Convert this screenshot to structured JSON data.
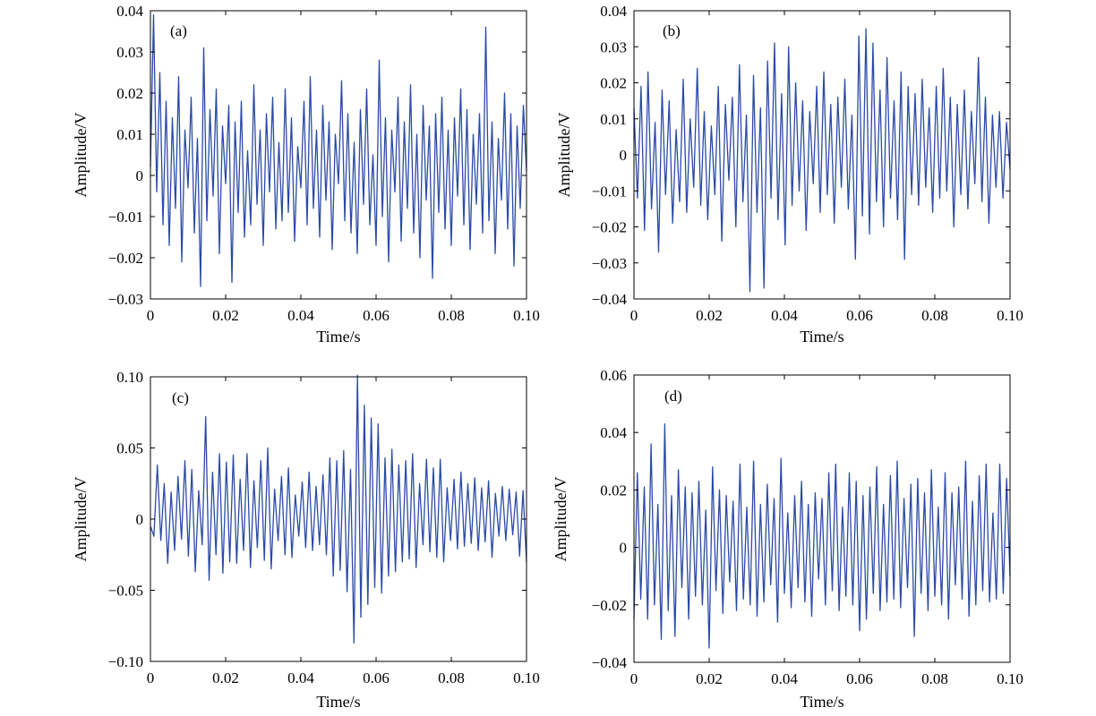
{
  "figure": {
    "background": "#ffffff",
    "line_color": "#2b4aa6"
  },
  "chart_data": [
    {
      "type": "line",
      "panel_label": "(a)",
      "xlabel": "Time/s",
      "ylabel": "Amplitude/V",
      "xlim": [
        0,
        0.1
      ],
      "ylim": [
        -0.03,
        0.04
      ],
      "xticks": [
        0,
        0.02,
        0.04,
        0.06,
        0.08,
        0.1
      ],
      "xtick_labels": [
        "0",
        "0.02",
        "0.04",
        "0.06",
        "0.08",
        "0.10"
      ],
      "yticks": [
        -0.03,
        -0.02,
        -0.01,
        0,
        0.01,
        0.02,
        0.03,
        0.04
      ],
      "ytick_labels": [
        "−0.03",
        "−0.02",
        "−0.01",
        "0",
        "0.01",
        "0.02",
        "0.03",
        "0.04"
      ],
      "grid": false,
      "series": [
        {
          "x_start": 0,
          "x_end": 0.1,
          "values": [
            0.002,
            0.039,
            -0.004,
            0.025,
            -0.012,
            0.018,
            -0.017,
            0.014,
            -0.008,
            0.024,
            -0.021,
            0.011,
            -0.003,
            0.019,
            -0.014,
            0.009,
            -0.027,
            0.031,
            -0.011,
            0.016,
            -0.005,
            0.021,
            -0.019,
            0.012,
            -0.002,
            0.017,
            -0.026,
            0.013,
            -0.009,
            0.018,
            -0.015,
            0.006,
            -0.012,
            0.022,
            -0.007,
            0.011,
            -0.017,
            0.015,
            -0.004,
            0.019,
            -0.013,
            0.008,
            -0.011,
            0.021,
            -0.009,
            0.014,
            -0.016,
            0.007,
            -0.003,
            0.018,
            -0.012,
            0.024,
            -0.008,
            0.011,
            -0.015,
            0.017,
            -0.006,
            0.013,
            -0.018,
            0.01,
            -0.002,
            0.023,
            -0.011,
            0.015,
            -0.014,
            0.008,
            -0.019,
            0.016,
            -0.007,
            0.021,
            -0.012,
            0.005,
            -0.017,
            0.028,
            -0.01,
            0.014,
            -0.021,
            0.011,
            -0.004,
            0.019,
            -0.016,
            0.013,
            -0.008,
            0.022,
            -0.014,
            0.01,
            -0.02,
            0.017,
            -0.006,
            0.012,
            -0.025,
            0.015,
            -0.009,
            0.019,
            -0.013,
            0.011,
            -0.017,
            0.014,
            -0.005,
            0.021,
            -0.012,
            0.016,
            -0.018,
            0.01,
            -0.007,
            0.015,
            -0.014,
            0.036,
            -0.011,
            0.013,
            -0.019,
            0.009,
            -0.006,
            0.02,
            -0.013,
            0.015,
            -0.022,
            0.012,
            -0.008,
            0.017,
            0.001
          ]
        }
      ]
    },
    {
      "type": "line",
      "panel_label": "(b)",
      "xlabel": "Time/s",
      "ylabel": "Amplitude/V",
      "xlim": [
        0,
        0.1
      ],
      "ylim": [
        -0.04,
        0.04
      ],
      "xticks": [
        0,
        0.02,
        0.04,
        0.06,
        0.08,
        0.1
      ],
      "xtick_labels": [
        "0",
        "0.02",
        "0.04",
        "0.06",
        "0.08",
        "0.10"
      ],
      "yticks": [
        -0.04,
        -0.03,
        -0.02,
        -0.01,
        0,
        0.01,
        0.02,
        0.03,
        0.04
      ],
      "ytick_labels": [
        "−0.04",
        "−0.03",
        "−0.02",
        "−0.01",
        "0",
        "0.01",
        "0.02",
        "0.03",
        "0.04"
      ],
      "grid": false,
      "series": [
        {
          "x_start": 0,
          "x_end": 0.1,
          "values": [
            0.013,
            -0.012,
            0.019,
            -0.021,
            0.023,
            -0.015,
            0.009,
            -0.027,
            0.018,
            -0.011,
            0.015,
            -0.019,
            0.007,
            -0.013,
            0.021,
            -0.016,
            0.01,
            -0.009,
            0.024,
            -0.014,
            0.012,
            -0.018,
            0.008,
            -0.011,
            0.019,
            -0.024,
            0.014,
            -0.007,
            0.016,
            -0.02,
            0.025,
            -0.013,
            0.011,
            -0.038,
            0.022,
            -0.016,
            0.013,
            -0.037,
            0.026,
            -0.012,
            0.031,
            -0.018,
            0.017,
            -0.025,
            0.03,
            -0.014,
            0.02,
            -0.01,
            0.015,
            -0.021,
            0.012,
            -0.008,
            0.019,
            -0.016,
            0.023,
            -0.011,
            0.014,
            -0.019,
            0.016,
            -0.009,
            0.021,
            -0.015,
            0.011,
            -0.029,
            0.033,
            -0.017,
            0.035,
            -0.022,
            0.031,
            -0.013,
            0.018,
            -0.02,
            0.027,
            -0.012,
            0.015,
            -0.018,
            0.023,
            -0.029,
            0.019,
            -0.011,
            0.017,
            -0.014,
            0.021,
            -0.009,
            0.013,
            -0.016,
            0.019,
            -0.012,
            0.024,
            -0.01,
            0.016,
            -0.02,
            0.014,
            -0.011,
            0.018,
            -0.015,
            0.012,
            -0.008,
            0.027,
            -0.013,
            0.016,
            -0.019,
            0.011,
            -0.009,
            0.012,
            -0.012,
            0.009,
            -0.004
          ]
        }
      ]
    },
    {
      "type": "line",
      "panel_label": "(c)",
      "xlabel": "Time/s",
      "ylabel": "Amplitude/V",
      "xlim": [
        0,
        0.1
      ],
      "ylim": [
        -0.1,
        0.1
      ],
      "xticks": [
        0,
        0.02,
        0.04,
        0.06,
        0.08,
        0.1
      ],
      "xtick_labels": [
        "0",
        "0.02",
        "0.04",
        "0.06",
        "0.08",
        "0.10"
      ],
      "yticks": [
        -0.1,
        -0.05,
        0,
        0.05,
        0.1
      ],
      "ytick_labels": [
        "−0.10",
        "−0.05",
        "0",
        "0.05",
        "0.10"
      ],
      "grid": false,
      "series": [
        {
          "x_start": 0,
          "x_end": 0.1,
          "values": [
            -0.005,
            -0.012,
            0.038,
            -0.015,
            0.025,
            -0.031,
            0.019,
            -0.022,
            0.03,
            -0.014,
            0.041,
            -0.026,
            0.035,
            -0.037,
            0.02,
            -0.018,
            0.072,
            -0.043,
            0.033,
            -0.025,
            0.046,
            -0.038,
            0.04,
            -0.03,
            0.045,
            -0.031,
            0.028,
            -0.022,
            0.046,
            -0.034,
            0.027,
            -0.02,
            0.041,
            -0.029,
            0.05,
            -0.035,
            0.021,
            -0.015,
            0.03,
            -0.025,
            0.036,
            -0.027,
            0.017,
            -0.012,
            0.026,
            -0.02,
            0.033,
            -0.022,
            0.023,
            -0.018,
            0.031,
            -0.025,
            0.043,
            -0.04,
            0.041,
            -0.036,
            0.048,
            -0.051,
            0.035,
            -0.087,
            0.101,
            -0.069,
            0.08,
            -0.06,
            0.071,
            -0.048,
            0.067,
            -0.052,
            0.043,
            -0.04,
            0.049,
            -0.037,
            0.038,
            -0.03,
            0.041,
            -0.028,
            0.046,
            -0.034,
            0.025,
            -0.018,
            0.042,
            -0.023,
            0.036,
            -0.027,
            0.042,
            -0.03,
            0.022,
            -0.015,
            0.028,
            -0.021,
            0.033,
            -0.019,
            0.025,
            -0.017,
            0.029,
            -0.022,
            0.022,
            -0.016,
            0.027,
            -0.027,
            0.018,
            -0.012,
            0.023,
            -0.015,
            0.021,
            -0.011,
            0.019,
            -0.026,
            0.02,
            -0.03
          ]
        }
      ]
    },
    {
      "type": "line",
      "panel_label": "(d)",
      "xlabel": "Time/s",
      "ylabel": "Amplitude/V",
      "xlim": [
        0,
        0.1
      ],
      "ylim": [
        -0.04,
        0.06
      ],
      "xticks": [
        0,
        0.02,
        0.04,
        0.06,
        0.08,
        0.1
      ],
      "xtick_labels": [
        "0",
        "0.02",
        "0.04",
        "0.06",
        "0.08",
        "0.10"
      ],
      "yticks": [
        -0.04,
        -0.02,
        0,
        0.02,
        0.04,
        0.06
      ],
      "ytick_labels": [
        "−0.04",
        "−0.02",
        "0",
        "0.02",
        "0.04",
        "0.06"
      ],
      "grid": false,
      "series": [
        {
          "x_start": 0,
          "x_end": 0.1,
          "values": [
            -0.025,
            0.026,
            -0.018,
            0.021,
            -0.025,
            0.036,
            -0.02,
            0.015,
            -0.032,
            0.043,
            -0.022,
            0.018,
            -0.031,
            0.027,
            -0.014,
            0.021,
            -0.025,
            0.019,
            -0.017,
            0.023,
            -0.02,
            0.013,
            -0.035,
            0.028,
            -0.015,
            0.02,
            -0.023,
            0.018,
            -0.012,
            0.016,
            -0.022,
            0.029,
            -0.018,
            0.014,
            -0.02,
            0.03,
            -0.024,
            0.015,
            -0.019,
            0.022,
            -0.013,
            0.017,
            -0.026,
            0.031,
            -0.016,
            0.012,
            -0.021,
            0.018,
            -0.014,
            0.023,
            -0.019,
            0.015,
            -0.024,
            0.019,
            -0.011,
            0.017,
            -0.02,
            0.026,
            -0.015,
            0.029,
            -0.022,
            0.014,
            -0.017,
            0.026,
            -0.02,
            0.023,
            -0.029,
            0.018,
            -0.025,
            0.021,
            -0.016,
            0.028,
            -0.022,
            0.015,
            -0.019,
            0.025,
            -0.018,
            0.03,
            -0.021,
            0.017,
            -0.014,
            0.022,
            -0.031,
            0.024,
            -0.016,
            0.019,
            -0.022,
            0.027,
            -0.017,
            0.014,
            -0.02,
            0.026,
            -0.025,
            0.019,
            -0.013,
            0.021,
            -0.018,
            0.03,
            -0.024,
            0.016,
            -0.02,
            0.025,
            -0.015,
            0.029,
            -0.019,
            0.012,
            -0.018,
            0.029,
            -0.016,
            0.024,
            -0.01
          ]
        }
      ]
    }
  ]
}
